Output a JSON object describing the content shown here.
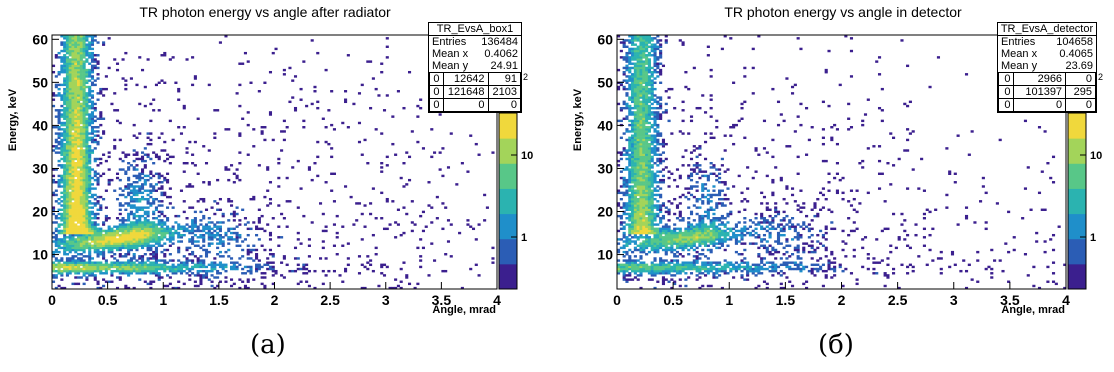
{
  "panels": [
    {
      "caption": "(a)",
      "stats_box": {
        "name": "TR_EvsA_box1",
        "rows": [
          [
            "Entries",
            "136484"
          ],
          [
            "Mean x",
            "0.4062"
          ],
          [
            "Mean y",
            "24.91"
          ]
        ],
        "sup": "2",
        "grid": [
          [
            "0",
            "12642",
            "91"
          ],
          [
            "0",
            "121648",
            "2103"
          ],
          [
            "0",
            "0",
            "0"
          ]
        ]
      }
    },
    {
      "caption": "(б)",
      "stats_box": {
        "name": "TR_EvsA_detector",
        "rows": [
          [
            "Entries",
            "104658"
          ],
          [
            "Mean x",
            "0.4065"
          ],
          [
            "Mean y",
            "23.69"
          ]
        ],
        "sup": "2",
        "grid": [
          [
            "0",
            "2966",
            "0"
          ],
          [
            "0",
            "101397",
            "295"
          ],
          [
            "0",
            "0",
            "0"
          ]
        ]
      }
    }
  ],
  "chart_data": [
    {
      "type": "heatmap",
      "title": "TR photon energy vs angle after radiator",
      "xlabel": "Angle, mrad",
      "ylabel": "Energy, keV",
      "xlim": [
        0,
        4
      ],
      "ylim": [
        2,
        61
      ],
      "x_ticks": [
        "0",
        "0.5",
        "1",
        "1.5",
        "2",
        "2.5",
        "3",
        "3.5",
        "4"
      ],
      "y_ticks": [
        "10",
        "20",
        "30",
        "40",
        "50",
        "60"
      ],
      "colorbar": {
        "scale": "log",
        "ticks": [
          "1",
          "10"
        ]
      },
      "colormap": [
        "#3b1f8e",
        "#2b5db5",
        "#1f8fca",
        "#2bb3b0",
        "#58c788",
        "#a3d45a",
        "#f0d83c"
      ],
      "seed": 11,
      "density_scale": 1.0,
      "features": [
        {
          "kind": "band",
          "x": [
            0.05,
            0.5
          ],
          "y": [
            15,
            61
          ],
          "weight": 1.0
        },
        {
          "kind": "band",
          "x": [
            0.1,
            1.0
          ],
          "y": [
            8,
            17
          ],
          "weight": 0.9
        },
        {
          "kind": "band",
          "x": [
            0.1,
            2.0
          ],
          "y": [
            5,
            9
          ],
          "weight": 0.8
        },
        {
          "kind": "band",
          "x": [
            0.5,
            1.1
          ],
          "y": [
            15,
            42
          ],
          "weight": 0.35
        },
        {
          "kind": "scatter",
          "x": [
            0.5,
            4.0
          ],
          "y": [
            4,
            50
          ],
          "weight": 0.15
        }
      ]
    },
    {
      "type": "heatmap",
      "title": "TR photon energy vs angle in detector",
      "xlabel": "Angle, mrad",
      "ylabel": "Energy, keV",
      "xlim": [
        0,
        4
      ],
      "ylim": [
        2,
        61
      ],
      "x_ticks": [
        "0",
        "0.5",
        "1",
        "1.5",
        "2",
        "2.5",
        "3",
        "3.5",
        "4"
      ],
      "y_ticks": [
        "10",
        "20",
        "30",
        "40",
        "50",
        "60"
      ],
      "colorbar": {
        "scale": "log",
        "ticks": [
          "1",
          "10"
        ]
      },
      "colormap": [
        "#3b1f8e",
        "#2b5db5",
        "#1f8fca",
        "#2bb3b0",
        "#58c788",
        "#a3d45a",
        "#f0d83c"
      ],
      "seed": 29,
      "density_scale": 0.78,
      "features": [
        {
          "kind": "band",
          "x": [
            0.05,
            0.5
          ],
          "y": [
            15,
            61
          ],
          "weight": 1.0
        },
        {
          "kind": "band",
          "x": [
            0.1,
            1.0
          ],
          "y": [
            8,
            17
          ],
          "weight": 0.85
        },
        {
          "kind": "band",
          "x": [
            0.1,
            2.0
          ],
          "y": [
            5,
            9
          ],
          "weight": 0.75
        },
        {
          "kind": "band",
          "x": [
            0.5,
            1.1
          ],
          "y": [
            15,
            42
          ],
          "weight": 0.3
        },
        {
          "kind": "scatter",
          "x": [
            0.5,
            4.0
          ],
          "y": [
            4,
            50
          ],
          "weight": 0.12
        }
      ]
    }
  ]
}
